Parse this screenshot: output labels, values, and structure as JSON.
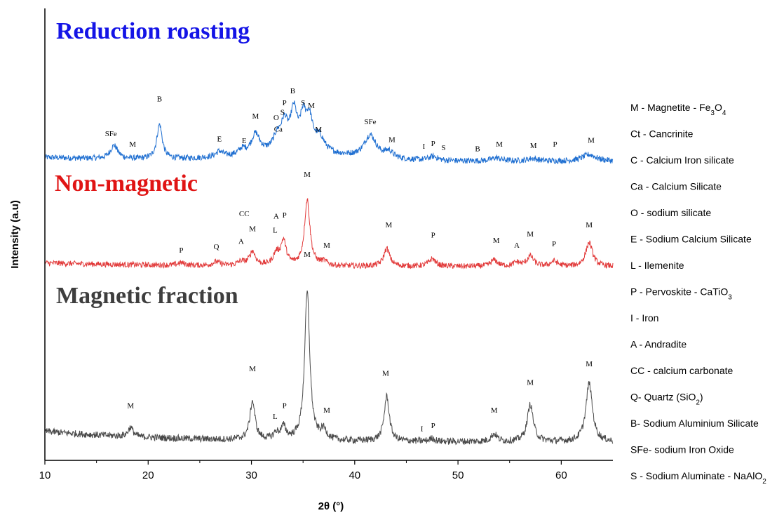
{
  "chart_data": {
    "type": "line",
    "xlabel": "2θ (°)",
    "ylabel": "Intensity (a.u)",
    "xlim": [
      10,
      65
    ],
    "x_ticks": [
      10,
      20,
      30,
      40,
      50,
      60
    ],
    "grid": false,
    "legend_position": "right",
    "series": [
      {
        "name": "Reduction roasting",
        "color": "#1f6fd1",
        "title_color": "#1414e6",
        "baseline": 0,
        "peaks": [
          {
            "x": 16.7,
            "h": 0.5,
            "w": 0.45
          },
          {
            "x": 21.1,
            "h": 1.3,
            "w": 0.32
          },
          {
            "x": 26.9,
            "h": 0.2,
            "w": 0.4
          },
          {
            "x": 29.1,
            "h": 0.2,
            "w": 0.4
          },
          {
            "x": 30.4,
            "h": 0.75,
            "w": 0.5
          },
          {
            "x": 32.5,
            "h": 0.55,
            "w": 0.5
          },
          {
            "x": 33.2,
            "h": 0.95,
            "w": 0.4
          },
          {
            "x": 34.1,
            "h": 1.45,
            "w": 0.4
          },
          {
            "x": 35.0,
            "h": 1.1,
            "w": 0.35
          },
          {
            "x": 35.6,
            "h": 1.15,
            "w": 0.4
          },
          {
            "x": 36.6,
            "h": 0.55,
            "w": 0.6
          },
          {
            "x": 41.5,
            "h": 0.85,
            "w": 0.7
          },
          {
            "x": 43.3,
            "h": 0.25,
            "w": 0.5
          },
          {
            "x": 47.6,
            "h": 0.15,
            "w": 0.5
          },
          {
            "x": 53.7,
            "h": 0.12,
            "w": 0.6
          },
          {
            "x": 57.2,
            "h": 0.1,
            "w": 0.6
          },
          {
            "x": 62.7,
            "h": 0.25,
            "w": 0.8
          }
        ],
        "labels": [
          {
            "text": "SFe",
            "x": 16.4,
            "h": 0.95
          },
          {
            "text": "M",
            "x": 18.5,
            "h": 0.55
          },
          {
            "text": "B",
            "x": 21.1,
            "h": 2.25
          },
          {
            "text": "E",
            "x": 26.9,
            "h": 0.75
          },
          {
            "text": "E",
            "x": 29.3,
            "h": 0.68
          },
          {
            "text": "M",
            "x": 30.4,
            "h": 1.6
          },
          {
            "text": "O",
            "x": 32.4,
            "h": 1.55
          },
          {
            "text": "Ca",
            "x": 32.6,
            "h": 1.12
          },
          {
            "text": "P",
            "x": 33.2,
            "h": 2.1
          },
          {
            "text": "S",
            "x": 33.0,
            "h": 1.75
          },
          {
            "text": "B",
            "x": 34.0,
            "h": 2.55
          },
          {
            "text": "S",
            "x": 35.0,
            "h": 2.1
          },
          {
            "text": "M",
            "x": 35.8,
            "h": 2.0
          },
          {
            "text": "M",
            "x": 36.5,
            "h": 1.1
          },
          {
            "text": "SFe",
            "x": 41.5,
            "h": 1.4
          },
          {
            "text": "M",
            "x": 43.6,
            "h": 0.72
          },
          {
            "text": "I",
            "x": 46.7,
            "h": 0.48
          },
          {
            "text": "P",
            "x": 47.6,
            "h": 0.58
          },
          {
            "text": "S",
            "x": 48.6,
            "h": 0.42
          },
          {
            "text": "B",
            "x": 51.9,
            "h": 0.38
          },
          {
            "text": "M",
            "x": 54.0,
            "h": 0.55
          },
          {
            "text": "M",
            "x": 57.3,
            "h": 0.5
          },
          {
            "text": "P",
            "x": 59.4,
            "h": 0.55
          },
          {
            "text": "M",
            "x": 62.9,
            "h": 0.7
          }
        ]
      },
      {
        "name": "Non-magnetic",
        "color": "#e23a3a",
        "title_color": "#e01414",
        "baseline": 0,
        "peaks": [
          {
            "x": 23.2,
            "h": 0.1,
            "w": 0.4
          },
          {
            "x": 26.6,
            "h": 0.15,
            "w": 0.4
          },
          {
            "x": 29.0,
            "h": 0.15,
            "w": 0.4
          },
          {
            "x": 30.1,
            "h": 0.55,
            "w": 0.35
          },
          {
            "x": 32.4,
            "h": 0.45,
            "w": 0.35
          },
          {
            "x": 33.1,
            "h": 0.95,
            "w": 0.32
          },
          {
            "x": 35.4,
            "h": 2.6,
            "w": 0.32
          },
          {
            "x": 37.0,
            "h": 0.15,
            "w": 0.4
          },
          {
            "x": 43.1,
            "h": 0.7,
            "w": 0.35
          },
          {
            "x": 47.5,
            "h": 0.3,
            "w": 0.4
          },
          {
            "x": 53.5,
            "h": 0.25,
            "w": 0.4
          },
          {
            "x": 55.7,
            "h": 0.15,
            "w": 0.4
          },
          {
            "x": 57.0,
            "h": 0.4,
            "w": 0.4
          },
          {
            "x": 59.3,
            "h": 0.2,
            "w": 0.4
          },
          {
            "x": 62.7,
            "h": 0.95,
            "w": 0.4
          }
        ],
        "labels": [
          {
            "text": "P",
            "x": 23.2,
            "h": 0.55
          },
          {
            "text": "Q",
            "x": 26.6,
            "h": 0.7
          },
          {
            "text": "A",
            "x": 29.0,
            "h": 0.9
          },
          {
            "text": "CC",
            "x": 29.3,
            "h": 2.0
          },
          {
            "text": "M",
            "x": 30.1,
            "h": 1.4
          },
          {
            "text": "L",
            "x": 32.3,
            "h": 1.35
          },
          {
            "text": "A",
            "x": 32.4,
            "h": 1.9
          },
          {
            "text": "P",
            "x": 33.2,
            "h": 1.95
          },
          {
            "text": "M",
            "x": 35.4,
            "h": 3.55
          },
          {
            "text": "M",
            "x": 37.3,
            "h": 0.75
          },
          {
            "text": "M",
            "x": 43.3,
            "h": 1.55
          },
          {
            "text": "P",
            "x": 47.6,
            "h": 1.15
          },
          {
            "text": "M",
            "x": 53.7,
            "h": 0.95
          },
          {
            "text": "A",
            "x": 55.7,
            "h": 0.75
          },
          {
            "text": "M",
            "x": 57.0,
            "h": 1.2
          },
          {
            "text": "P",
            "x": 59.3,
            "h": 0.8
          },
          {
            "text": "M",
            "x": 62.7,
            "h": 1.55
          }
        ]
      },
      {
        "name": "Magnetic fraction",
        "color": "#4a4a4a",
        "title_color": "#3e3e3e",
        "baseline": 0,
        "peaks": [
          {
            "x": 18.3,
            "h": 0.3,
            "w": 0.3
          },
          {
            "x": 30.1,
            "h": 1.25,
            "w": 0.3
          },
          {
            "x": 32.4,
            "h": 0.2,
            "w": 0.3
          },
          {
            "x": 33.1,
            "h": 0.4,
            "w": 0.3
          },
          {
            "x": 35.4,
            "h": 4.8,
            "w": 0.3
          },
          {
            "x": 37.0,
            "h": 0.3,
            "w": 0.35
          },
          {
            "x": 43.1,
            "h": 1.45,
            "w": 0.3
          },
          {
            "x": 47.5,
            "h": 0.1,
            "w": 0.3
          },
          {
            "x": 53.5,
            "h": 0.25,
            "w": 0.35
          },
          {
            "x": 57.0,
            "h": 1.2,
            "w": 0.35
          },
          {
            "x": 62.7,
            "h": 1.9,
            "w": 0.38
          }
        ],
        "labels": [
          {
            "text": "M",
            "x": 18.3,
            "h": 1.1
          },
          {
            "text": "M",
            "x": 30.1,
            "h": 2.3
          },
          {
            "text": "L",
            "x": 32.3,
            "h": 0.75
          },
          {
            "text": "P",
            "x": 33.2,
            "h": 1.1
          },
          {
            "text": "M",
            "x": 35.4,
            "h": 6.0
          },
          {
            "text": "M",
            "x": 37.3,
            "h": 0.95
          },
          {
            "text": "M",
            "x": 43.0,
            "h": 2.15
          },
          {
            "text": "I",
            "x": 46.5,
            "h": 0.35
          },
          {
            "text": "P",
            "x": 47.6,
            "h": 0.45
          },
          {
            "text": "M",
            "x": 53.5,
            "h": 0.95
          },
          {
            "text": "M",
            "x": 57.0,
            "h": 1.85
          },
          {
            "text": "M",
            "x": 62.7,
            "h": 2.45
          }
        ]
      }
    ],
    "legend": [
      {
        "text": "M -  Magnetite - Fe",
        "sub": "3",
        "text2": "O",
        "sub2": "4"
      },
      {
        "text": "Ct - Cancrinite"
      },
      {
        "text": "C  - Calcium Iron silicate"
      },
      {
        "text": "Ca - Calcium Silicate"
      },
      {
        "text": "O - sodium silicate"
      },
      {
        "text": "E - Sodium Calcium Silicate"
      },
      {
        "text": "L - Ilemenite"
      },
      {
        "text": "P  -  Pervoskite - CaTiO",
        "sub": "3"
      },
      {
        "text": "I - Iron"
      },
      {
        "text": "A - Andradite"
      },
      {
        "text": "CC - calcium carbonate"
      },
      {
        "text": "Q- Quartz (SiO",
        "sub": "2",
        "text2": ")"
      },
      {
        "text": "B- Sodium Aluminium Silicate"
      },
      {
        "text": "SFe- sodium Iron Oxide"
      },
      {
        "text": "S - Sodium Aluminate - NaAlO",
        "sub": "2"
      }
    ]
  }
}
